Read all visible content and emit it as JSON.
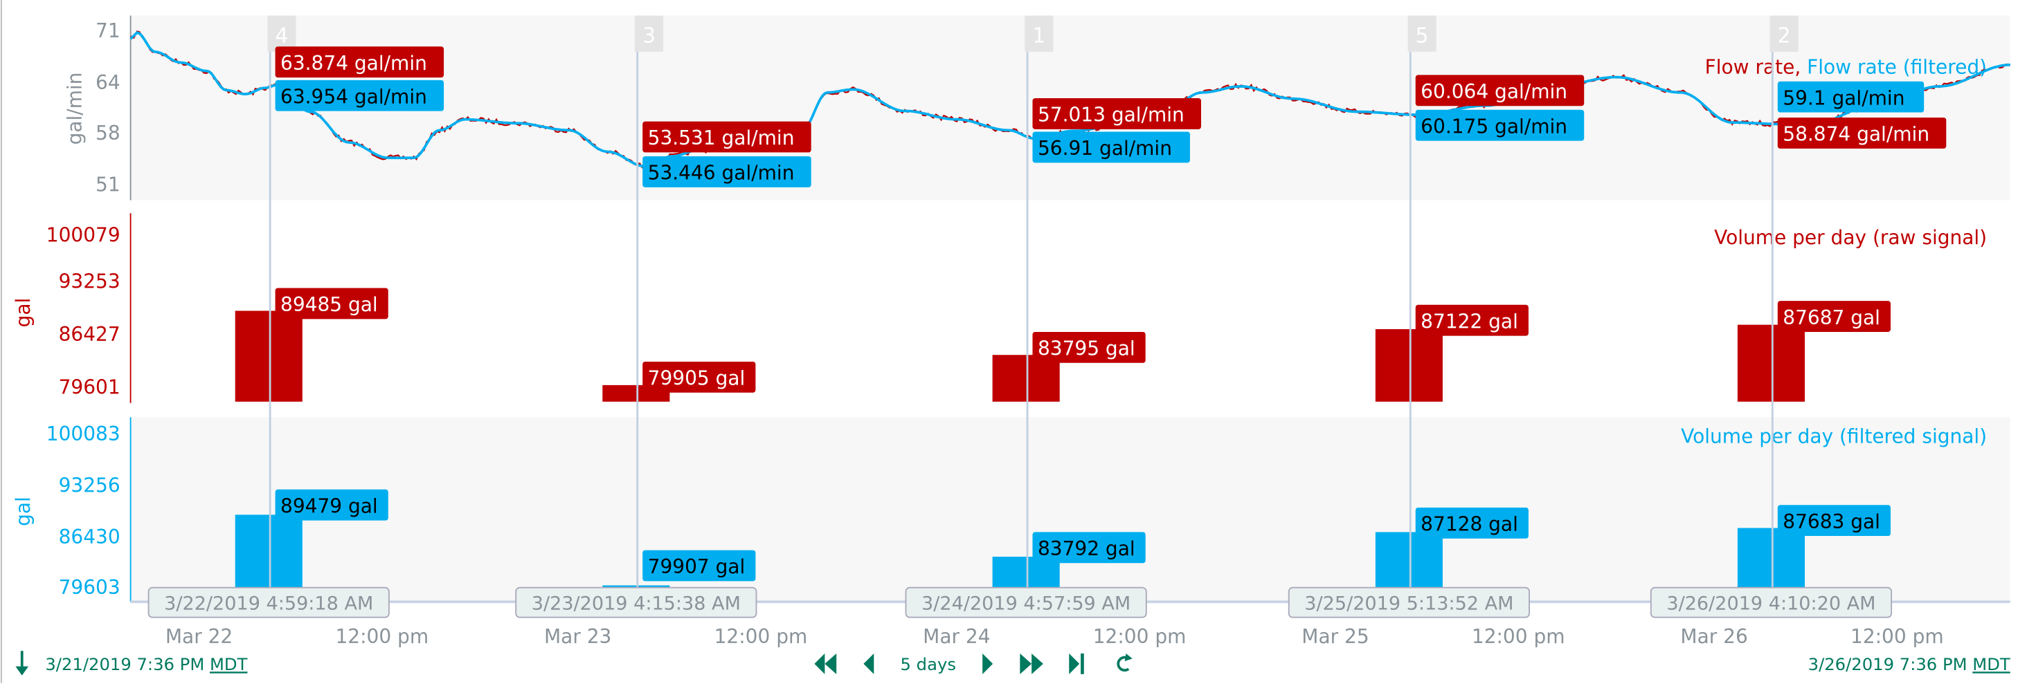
{
  "colors": {
    "raw": "#c00000",
    "filtered": "#00aeef",
    "accent": "#00795f",
    "axis": "#8a9399"
  },
  "chart_data": [
    {
      "type": "line",
      "title_parts": [
        "Flow rate",
        ", ",
        "Flow rate (filtered)"
      ],
      "ylabel": "gal/min",
      "yticks": [
        "71",
        "64",
        "58",
        "51"
      ],
      "ylim": [
        50,
        72
      ],
      "series": [
        {
          "name": "Flow rate",
          "color": "#c00000"
        },
        {
          "name": "Flow rate (filtered)",
          "color": "#00aeef"
        }
      ],
      "points": [
        [
          "2019-03-21T19:36",
          70.0
        ],
        [
          "2019-03-21T20:04",
          70.8
        ],
        [
          "2019-03-21T21:13",
          68.3
        ],
        [
          "2019-03-21T22:51",
          66.9
        ],
        [
          "2019-03-22T00:29",
          65.8
        ],
        [
          "2019-03-22T01:43",
          63.3
        ],
        [
          "2019-03-22T02:57",
          62.8
        ],
        [
          "2019-03-22T04:11",
          63.6
        ],
        [
          "2019-03-22T04:59",
          64.0
        ],
        [
          "2019-03-22T07:02",
          60.5
        ],
        [
          "2019-03-22T09:30",
          56.5
        ],
        [
          "2019-03-22T11:58",
          54.5
        ],
        [
          "2019-03-22T13:36",
          54.5
        ],
        [
          "2019-03-22T15:14",
          58.1
        ],
        [
          "2019-03-22T16:52",
          59.5
        ],
        [
          "2019-03-22T20:09",
          59.0
        ],
        [
          "2019-03-22T23:25",
          58.1
        ],
        [
          "2019-03-23T01:53",
          55.3
        ],
        [
          "2019-03-23T04:15",
          53.4
        ],
        [
          "2019-03-23T05:59",
          54.7
        ],
        [
          "2019-03-23T07:37",
          55.5
        ],
        [
          "2019-03-23T14:10",
          58.0
        ],
        [
          "2019-03-23T15:48",
          63.0
        ],
        [
          "2019-03-23T17:26",
          63.4
        ],
        [
          "2019-03-23T20:43",
          60.6
        ],
        [
          "2019-03-24T00:00",
          59.5
        ],
        [
          "2019-03-24T03:16",
          58.1
        ],
        [
          "2019-03-24T04:58",
          57.0
        ],
        [
          "2019-03-24T07:22",
          58.0
        ],
        [
          "2019-03-24T13:06",
          60.5
        ],
        [
          "2019-03-24T15:33",
          63.0
        ],
        [
          "2019-03-24T18:00",
          63.8
        ],
        [
          "2019-03-24T21:17",
          62.2
        ],
        [
          "2019-03-25T01:23",
          60.5
        ],
        [
          "2019-03-25T05:13",
          60.1
        ],
        [
          "2019-03-25T09:34",
          61.3
        ],
        [
          "2019-03-25T13:40",
          63.7
        ],
        [
          "2019-03-25T17:46",
          65.0
        ],
        [
          "2019-03-25T21:52",
          63.0
        ],
        [
          "2019-03-26T01:08",
          59.1
        ],
        [
          "2019-03-26T04:10",
          58.9
        ],
        [
          "2019-03-26T06:03",
          58.8
        ],
        [
          "2019-03-26T10:08",
          61.3
        ],
        [
          "2019-03-26T14:14",
          63.8
        ],
        [
          "2019-03-26T19:36",
          66.6
        ]
      ]
    },
    {
      "type": "bar",
      "title": "Volume per day (raw signal)",
      "ylabel": "gal",
      "yticks": [
        "100079",
        "93253",
        "86427",
        "79601"
      ],
      "ylim": [
        77770,
        101500
      ],
      "color": "#c00000",
      "values": [
        89485,
        79905,
        83795,
        87122,
        87687
      ],
      "labels": [
        "89485 gal",
        "79905 gal",
        "83795 gal",
        "87122 gal",
        "87687 gal"
      ]
    },
    {
      "type": "bar",
      "title": "Volume per day (filtered signal)",
      "ylabel": "gal",
      "yticks": [
        "100083",
        "93256",
        "86430",
        "79603"
      ],
      "ylim": [
        79603,
        102000
      ],
      "color": "#00aeef",
      "values": [
        89479,
        79907,
        83792,
        87128,
        87683
      ],
      "labels": [
        "89479 gal",
        "79907 gal",
        "83792 gal",
        "87128 gal",
        "87683 gal"
      ]
    }
  ],
  "cursors": [
    {
      "marker": "4",
      "time": "3/22/2019 4:59:18 AM",
      "raw": "63.874 gal/min",
      "filtered": "63.954 gal/min"
    },
    {
      "marker": "3",
      "time": "3/23/2019 4:15:38 AM",
      "raw": "53.531 gal/min",
      "filtered": "53.446 gal/min"
    },
    {
      "marker": "1",
      "time": "3/24/2019 4:57:59 AM",
      "raw": "57.013 gal/min",
      "filtered": "56.91 gal/min"
    },
    {
      "marker": "5",
      "time": "3/25/2019 5:13:52 AM",
      "raw": "60.064 gal/min",
      "filtered": "60.175 gal/min"
    },
    {
      "marker": "2",
      "time": "3/26/2019 4:10:20 AM",
      "raw": "58.874 gal/min",
      "filtered": "59.1 gal/min"
    }
  ],
  "xaxis": {
    "ticks": [
      "Mar 22",
      "12:00 pm",
      "Mar 23",
      "12:00 pm",
      "Mar 24",
      "12:00 pm",
      "Mar 25",
      "12:00 pm",
      "Mar 26",
      "12:00 pm"
    ]
  },
  "footer": {
    "start": "3/21/2019 7:36 PM",
    "end": "3/26/2019 7:36 PM",
    "tz": "MDT",
    "range": "5 days"
  }
}
